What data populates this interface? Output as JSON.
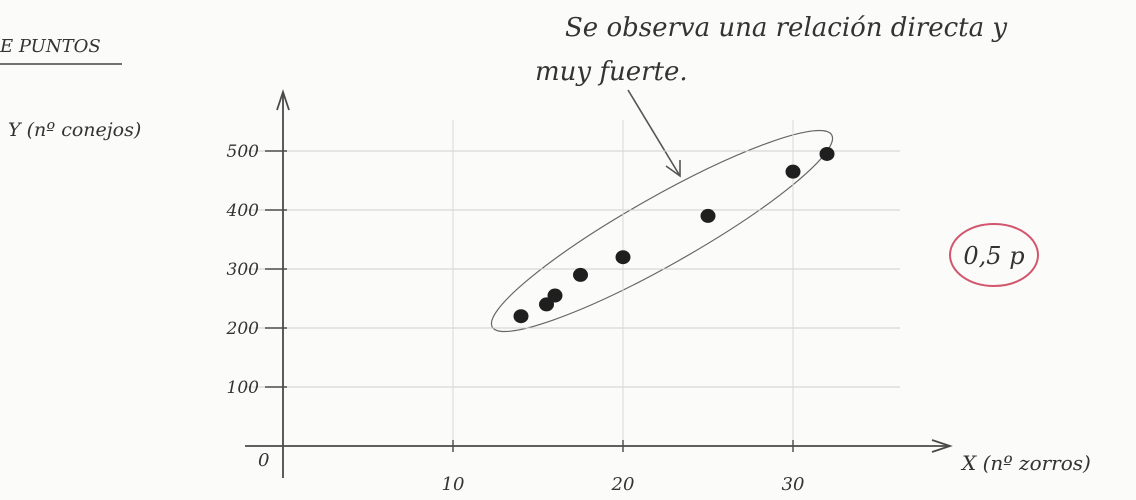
{
  "header": {
    "section_label": "E PUNTOS"
  },
  "annotation": {
    "line1": "Se observa una relación directa y",
    "line2": "muy fuerte."
  },
  "grade": {
    "label": "0,5 p",
    "color": "#d2566d"
  },
  "chart_data": {
    "type": "scatter",
    "title": "",
    "xlabel": "X (nº zorros)",
    "ylabel": "Y (nº conejos)",
    "origin_label": "0",
    "xlim": [
      0,
      40
    ],
    "ylim": [
      0,
      550
    ],
    "x_ticks": [
      10,
      20,
      30
    ],
    "x_tick_labels": [
      "10",
      "20",
      "30"
    ],
    "y_ticks": [
      100,
      200,
      300,
      400,
      500
    ],
    "y_tick_labels": [
      "100",
      "200",
      "300",
      "400",
      "500"
    ],
    "grid": true,
    "points": [
      {
        "x": 14,
        "y": 220
      },
      {
        "x": 15.5,
        "y": 240
      },
      {
        "x": 16,
        "y": 255
      },
      {
        "x": 17.5,
        "y": 290
      },
      {
        "x": 20,
        "y": 320
      },
      {
        "x": 25,
        "y": 390
      },
      {
        "x": 30,
        "y": 465
      },
      {
        "x": 32,
        "y": 495
      }
    ],
    "point_color": "#1f1f1f",
    "ink_color": "#4a4a4a"
  }
}
